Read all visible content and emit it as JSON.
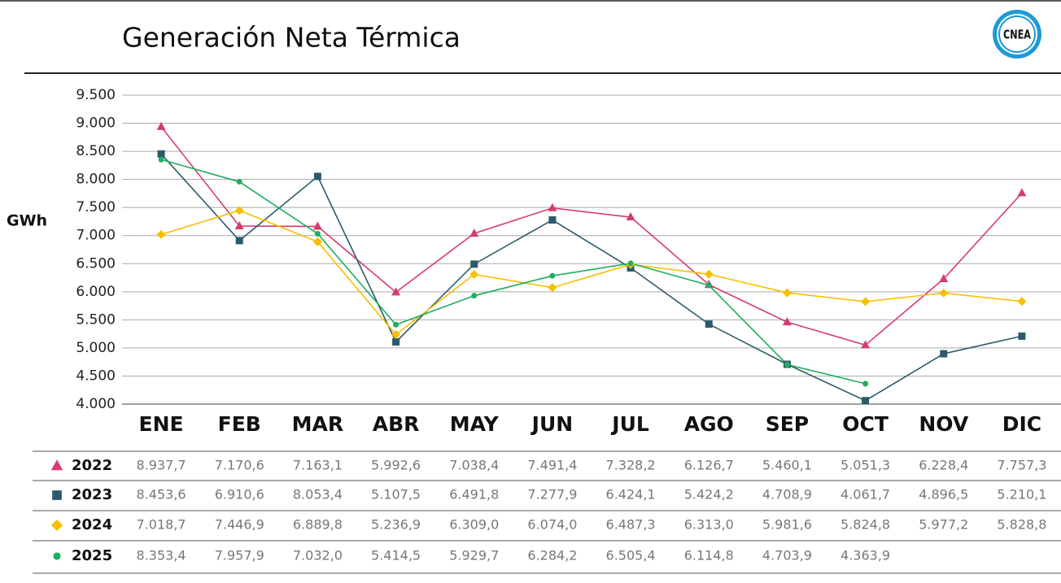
{
  "chart_data": {
    "type": "line",
    "title": "Generación Neta Térmica",
    "logo": "CNEA",
    "y_label": "GWh",
    "categories": [
      "ENE",
      "FEB",
      "MAR",
      "ABR",
      "MAY",
      "JUN",
      "JUL",
      "AGO",
      "SEP",
      "OCT",
      "NOV",
      "DIC"
    ],
    "ylim": [
      4000,
      9500
    ],
    "yticks": [
      {
        "value": 4000,
        "label": "4.000"
      },
      {
        "value": 4500,
        "label": "4.500"
      },
      {
        "value": 5000,
        "label": "5.000"
      },
      {
        "value": 5500,
        "label": "5.500"
      },
      {
        "value": 6000,
        "label": "6.000"
      },
      {
        "value": 6500,
        "label": "6.500"
      },
      {
        "value": 7000,
        "label": "7.000"
      },
      {
        "value": 7500,
        "label": "7.500"
      },
      {
        "value": 8000,
        "label": "8.000"
      },
      {
        "value": 8500,
        "label": "8.500"
      },
      {
        "value": 9000,
        "label": "9.000"
      },
      {
        "value": 9500,
        "label": "9.500"
      }
    ],
    "grid": true,
    "series": [
      {
        "name": "2022",
        "color": "#d63c70",
        "marker": "triangle",
        "values": [
          8937.7,
          7170.6,
          7163.1,
          5992.6,
          7038.4,
          7491.4,
          7328.2,
          6126.7,
          5460.1,
          5051.3,
          6228.4,
          7757.3
        ],
        "value_labels": [
          "8.937,7",
          "7.170,6",
          "7.163,1",
          "5.992,6",
          "7.038,4",
          "7.491,4",
          "7.328,2",
          "6.126,7",
          "5.460,1",
          "5.051,3",
          "6.228,4",
          "7.757,3"
        ]
      },
      {
        "name": "2023",
        "color": "#2d5a6b",
        "marker": "square",
        "values": [
          8453.6,
          6910.6,
          8053.4,
          5107.5,
          6491.8,
          7277.9,
          6424.1,
          5424.2,
          4708.9,
          4061.7,
          4896.5,
          5210.1
        ],
        "value_labels": [
          "8.453,6",
          "6.910,6",
          "8.053,4",
          "5.107,5",
          "6.491,8",
          "7.277,9",
          "6.424,1",
          "5.424,2",
          "4.708,9",
          "4.061,7",
          "4.896,5",
          "5.210,1"
        ]
      },
      {
        "name": "2024",
        "color": "#f5c000",
        "marker": "diamond",
        "values": [
          7018.7,
          7446.9,
          6889.8,
          5236.9,
          6309.0,
          6074.0,
          6487.3,
          6313.0,
          5981.6,
          5824.8,
          5977.2,
          5828.8
        ],
        "value_labels": [
          "7.018,7",
          "7.446,9",
          "6.889,8",
          "5.236,9",
          "6.309,0",
          "6.074,0",
          "6.487,3",
          "6.313,0",
          "5.981,6",
          "5.824,8",
          "5.977,2",
          "5.828,8"
        ]
      },
      {
        "name": "2025",
        "color": "#1fae5f",
        "marker": "circle",
        "values": [
          8353.4,
          7957.9,
          7032.0,
          5414.5,
          5929.7,
          6284.2,
          6505.4,
          6114.8,
          4703.9,
          4363.9,
          null,
          null
        ],
        "value_labels": [
          "8.353,4",
          "7.957,9",
          "7.032,0",
          "5.414,5",
          "5.929,7",
          "6.284,2",
          "6.505,4",
          "6.114,8",
          "4.703,9",
          "4.363,9",
          null,
          null
        ]
      }
    ]
  }
}
